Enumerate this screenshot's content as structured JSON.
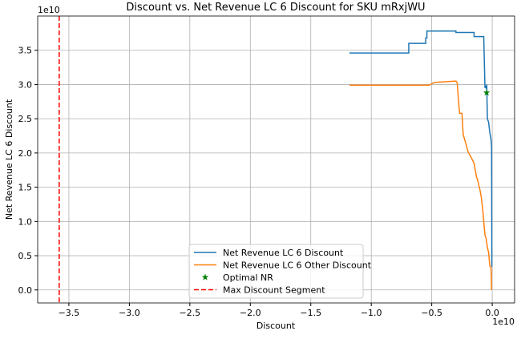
{
  "chart_data": {
    "type": "line",
    "title": "Discount vs. Net Revenue LC 6 Discount for SKU mRxjWU",
    "x_label": "Discount",
    "y_label": "Net Revenue LC 6 Discount",
    "x_offset": "1e10",
    "y_offset": "1e10",
    "xlim": [
      -3.758,
      0.185
    ],
    "ylim": [
      -0.19,
      4.0
    ],
    "xticks": [
      {
        "value": -3.5,
        "label": "−3.5"
      },
      {
        "value": -3.0,
        "label": "−3.0"
      },
      {
        "value": -2.5,
        "label": "−2.5"
      },
      {
        "value": -2.0,
        "label": "−2.0"
      },
      {
        "value": -1.5,
        "label": "−1.5"
      },
      {
        "value": -1.0,
        "label": "−1.0"
      },
      {
        "value": -0.5,
        "label": "−0.5"
      },
      {
        "value": 0.0,
        "label": "0.0"
      }
    ],
    "yticks": [
      {
        "value": 0.0,
        "label": "0.0"
      },
      0.5,
      {
        "value": 1.0,
        "label": "1.0"
      },
      1.5,
      {
        "value": 2.0,
        "label": "2.0"
      },
      2.5,
      {
        "value": 3.0,
        "label": "3.0"
      },
      3.5
    ],
    "grid": true,
    "legend": "lower center",
    "series": [
      {
        "name": "Net Revenue LC 6 Discount",
        "kind": "line",
        "color": "#1f77b4",
        "x": [
          -1.18,
          -0.69,
          -0.69,
          -0.55,
          -0.55,
          -0.54,
          -0.54,
          -0.3,
          -0.3,
          -0.15,
          -0.15,
          -0.07,
          -0.065,
          -0.06,
          -0.055,
          -0.05,
          -0.045,
          -0.04,
          -0.03,
          -0.02,
          -0.01,
          -0.005,
          -0.003
        ],
        "values": [
          3.46,
          3.46,
          3.6,
          3.6,
          3.68,
          3.68,
          3.78,
          3.78,
          3.76,
          3.76,
          3.7,
          3.7,
          3.33,
          2.95,
          2.98,
          2.94,
          3.0,
          2.5,
          2.45,
          2.3,
          2.2,
          2.08,
          0.34
        ]
      },
      {
        "name": "Net Revenue LC 6 Other Discount",
        "kind": "line",
        "color": "#ff7f0e",
        "x": [
          -1.18,
          -0.52,
          -0.48,
          -0.3,
          -0.29,
          -0.28,
          -0.27,
          -0.25,
          -0.24,
          -0.22,
          -0.2,
          -0.17,
          -0.15,
          -0.13,
          -0.12,
          -0.1,
          -0.09,
          -0.08,
          -0.07,
          -0.06,
          -0.05,
          -0.04,
          -0.03,
          -0.02,
          -0.01,
          -0.005
        ],
        "values": [
          2.99,
          2.99,
          3.03,
          3.05,
          3.03,
          2.8,
          2.58,
          2.58,
          2.27,
          2.15,
          2.02,
          1.92,
          1.85,
          1.65,
          1.6,
          1.45,
          1.35,
          1.2,
          1.0,
          0.8,
          0.75,
          0.62,
          0.55,
          0.35,
          0.33,
          0.0
        ]
      },
      {
        "name": "Optimal NR",
        "kind": "scatter",
        "color": "#008000",
        "x": [
          -0.046
        ],
        "values": [
          2.88
        ]
      },
      {
        "name": "Max Discount Segment",
        "kind": "vline",
        "color": "#ff0000",
        "x": [
          -3.58
        ]
      }
    ]
  }
}
